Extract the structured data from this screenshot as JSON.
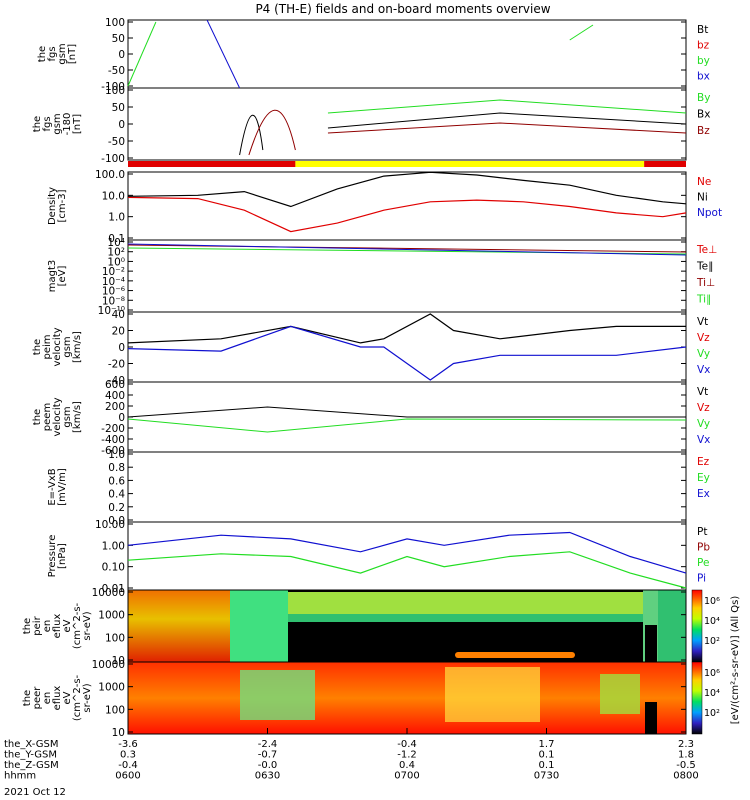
{
  "title": "P4 (TH-E) fields and on-board moments overview",
  "colors": {
    "black": "#000000",
    "red": "#e00000",
    "green": "#22dd22",
    "blue": "#1010d0",
    "darkred": "#900000",
    "yellow": "#ffff00",
    "orange": "#ff8000"
  },
  "panels": [
    {
      "id": "fgs",
      "ylabel": [
        "the",
        "fgs",
        "gsm",
        "[nT]"
      ],
      "ticks": [
        "100",
        "50",
        "0",
        "-50",
        "-100"
      ],
      "legend": [
        "Bt",
        "bz",
        "by",
        "bx"
      ],
      "legend_colors": [
        "black",
        "red",
        "green",
        "blue"
      ]
    },
    {
      "id": "fgl",
      "ylabel": [
        "the",
        "fgs",
        "gsm",
        "-180",
        "[nT]"
      ],
      "ticks": [
        "100",
        "50",
        "0",
        "-50",
        "-100"
      ],
      "legend": [
        "By",
        "Bx",
        "Bz"
      ],
      "legend_colors": [
        "green",
        "black",
        "darkred"
      ]
    },
    {
      "id": "density",
      "ylabel": [
        "Density",
        "[cm-3]"
      ],
      "ticks": [
        "100.0",
        "10.0",
        "1.0",
        "0.1"
      ],
      "legend": [
        "Ne",
        "Ni",
        "Npot"
      ],
      "legend_colors": [
        "red",
        "black",
        "blue"
      ]
    },
    {
      "id": "temp",
      "ylabel": [
        "magt3",
        "[eV]"
      ],
      "ticks": [
        "10⁴",
        "10²",
        "10⁰",
        "10⁻²",
        "10⁻⁴",
        "10⁻⁶",
        "10⁻⁸",
        "10⁻¹⁰"
      ],
      "legend": [
        "Te⊥",
        "Te∥",
        "Ti⊥",
        "Ti∥"
      ],
      "legend_colors": [
        "red",
        "black",
        "darkred",
        "green"
      ]
    },
    {
      "id": "peim",
      "ylabel": [
        "the",
        "peim",
        "velocity",
        "gsm",
        "[km/s]"
      ],
      "ticks": [
        "40",
        "20",
        "0",
        "-20",
        "-40"
      ],
      "legend": [
        "Vt",
        "Vz",
        "Vy",
        "Vx"
      ],
      "legend_colors": [
        "black",
        "red",
        "green",
        "blue"
      ]
    },
    {
      "id": "peem",
      "ylabel": [
        "the",
        "peem",
        "velocity",
        "gsm",
        "[km/s]"
      ],
      "ticks": [
        "600",
        "400",
        "200",
        "0",
        "-200",
        "-400",
        "-600"
      ],
      "legend": [
        "Vt",
        "Vz",
        "Vy",
        "Vx"
      ],
      "legend_colors": [
        "black",
        "red",
        "green",
        "blue"
      ]
    },
    {
      "id": "efield",
      "ylabel": [
        "E=-VxB",
        "[mV/m]"
      ],
      "ticks": [
        "1.0",
        "0.8",
        "0.6",
        "0.4",
        "0.2",
        "0.0"
      ],
      "legend": [
        "Ez",
        "Ey",
        "Ex"
      ],
      "legend_colors": [
        "red",
        "green",
        "blue"
      ]
    },
    {
      "id": "pressure",
      "ylabel": [
        "Pressure",
        "[nPa]"
      ],
      "ticks": [
        "10.00",
        "1.00",
        "0.10",
        "0.01"
      ],
      "legend": [
        "Pt",
        "Pb",
        "Pe",
        "Pi"
      ],
      "legend_colors": [
        "black",
        "darkred",
        "green",
        "blue"
      ]
    },
    {
      "id": "peir",
      "ylabel": [
        "the",
        "peir",
        "en",
        "eflux",
        "eV",
        "(cm^2-s-",
        "sr-eV)"
      ],
      "ticks": [
        "10000",
        "1000",
        "100",
        "10"
      ]
    },
    {
      "id": "peer",
      "ylabel": [
        "the",
        "peer",
        "en",
        "eflux",
        "eV",
        "(cm^2-s-",
        "sr-eV)"
      ],
      "ticks": [
        "10000",
        "1000",
        "100",
        "10"
      ]
    }
  ],
  "colorbar": {
    "label": "[eV/(cm²-s-sr-eV)] (All Qs)",
    "ticks_top": [
      "10⁶",
      "10⁴",
      "10²"
    ],
    "ticks_bottom": [
      "10⁶",
      "10⁴",
      "10²"
    ]
  },
  "xaxis": {
    "rows": [
      {
        "label": "the_X-GSM",
        "values": [
          "-3.6",
          "-2.4",
          "-0.4",
          "1.7",
          "2.3"
        ]
      },
      {
        "label": "the_Y-GSM",
        "values": [
          "0.3",
          "-0.7",
          "-1.2",
          "0.1",
          "1.8"
        ]
      },
      {
        "label": "the_Z-GSM",
        "values": [
          "-0.4",
          "-0.0",
          "0.4",
          "0.1",
          "-0.5"
        ]
      },
      {
        "label": "hhmm",
        "values": [
          "0600",
          "0630",
          "0700",
          "0730",
          "0800"
        ]
      }
    ],
    "date": "2021 Oct 12"
  },
  "chart_data": {
    "type": "line",
    "title": "P4 (TH-E) fields and on-board moments overview",
    "x_time": [
      "0600",
      "0630",
      "0700",
      "0730",
      "0800"
    ],
    "mode_bar": [
      {
        "from": "0600",
        "to": "0636",
        "color": "red"
      },
      {
        "from": "0636",
        "to": "0751",
        "color": "yellow"
      },
      {
        "from": "0751",
        "to": "0800",
        "color": "red"
      }
    ],
    "series": [
      {
        "panel": "density",
        "name": "Ne",
        "x": [
          "0600",
          "0615",
          "0625",
          "0635",
          "0645",
          "0655",
          "0705",
          "0715",
          "0725",
          "0735",
          "0745",
          "0755",
          "0800"
        ],
        "values": [
          8,
          7,
          2,
          0.2,
          0.5,
          2,
          5,
          6,
          5,
          3,
          1.5,
          1.0,
          1.5
        ]
      },
      {
        "panel": "density",
        "name": "Ni",
        "x": [
          "0600",
          "0615",
          "0625",
          "0635",
          "0645",
          "0655",
          "0705",
          "0715",
          "0725",
          "0735",
          "0745",
          "0755",
          "0800"
        ],
        "values": [
          9,
          10,
          15,
          3,
          20,
          80,
          120,
          90,
          50,
          30,
          10,
          5,
          4
        ]
      },
      {
        "panel": "pressure",
        "name": "Pi",
        "x": [
          "0600",
          "0620",
          "0635",
          "0650",
          "0700",
          "0708",
          "0722",
          "0735",
          "0748",
          "0800"
        ],
        "values": [
          1.0,
          3.0,
          2.0,
          0.5,
          2.0,
          1.0,
          3.0,
          4.0,
          0.3,
          0.05
        ]
      },
      {
        "panel": "pressure",
        "name": "Pe",
        "x": [
          "0600",
          "0620",
          "0635",
          "0650",
          "0700",
          "0708",
          "0722",
          "0735",
          "0748",
          "0800"
        ],
        "values": [
          0.2,
          0.4,
          0.3,
          0.05,
          0.3,
          0.1,
          0.3,
          0.5,
          0.05,
          0.01
        ]
      },
      {
        "panel": "peim",
        "name": "Vt",
        "x": [
          "0600",
          "0620",
          "0635",
          "0650",
          "0655",
          "0705",
          "0710",
          "0720",
          "0735",
          "0745",
          "0800"
        ],
        "values": [
          5,
          10,
          25,
          5,
          10,
          40,
          20,
          10,
          20,
          25,
          25
        ]
      },
      {
        "panel": "peim",
        "name": "Vx",
        "x": [
          "0600",
          "0620",
          "0635",
          "0650",
          "0655",
          "0705",
          "0710",
          "0720",
          "0735",
          "0745",
          "0800"
        ],
        "values": [
          -2,
          -5,
          25,
          0,
          0,
          -40,
          -20,
          -10,
          -10,
          -10,
          0
        ]
      }
    ]
  }
}
